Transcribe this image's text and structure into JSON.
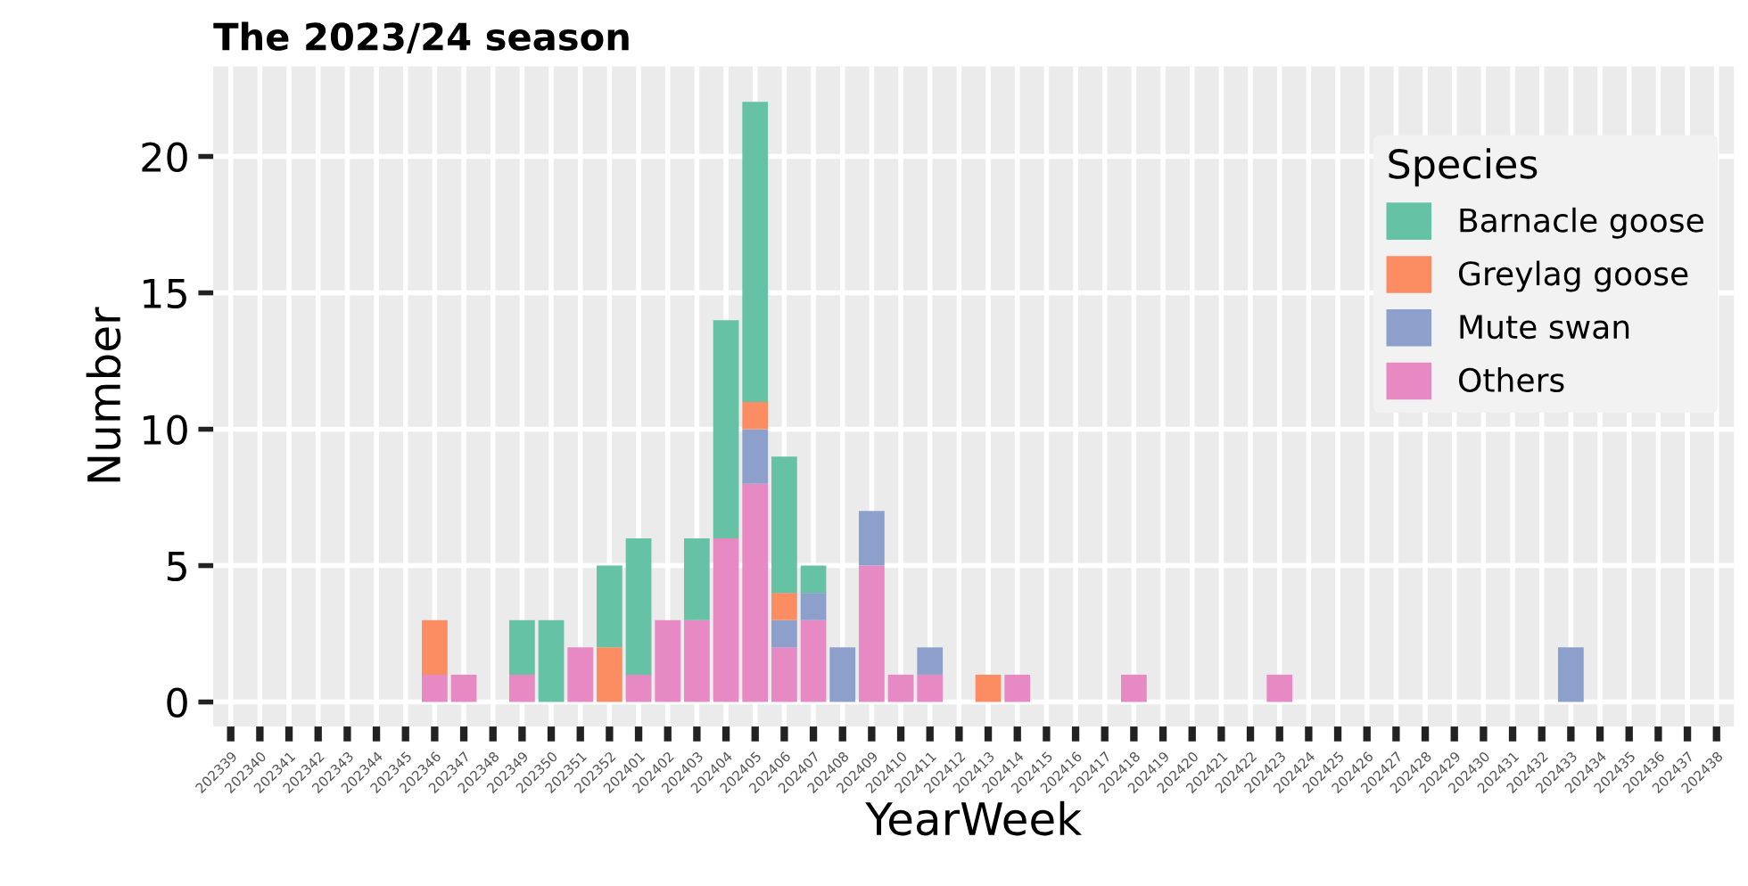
{
  "chart_data": {
    "type": "bar",
    "title": "The 2023/24 season",
    "xlabel": "YearWeek",
    "ylabel": "Number",
    "legend_title": "Species",
    "categories": [
      "202339",
      "202340",
      "202341",
      "202342",
      "202343",
      "202344",
      "202345",
      "202346",
      "202347",
      "202348",
      "202349",
      "202350",
      "202351",
      "202352",
      "202401",
      "202402",
      "202403",
      "202404",
      "202405",
      "202406",
      "202407",
      "202408",
      "202409",
      "202410",
      "202411",
      "202412",
      "202413",
      "202414",
      "202415",
      "202416",
      "202417",
      "202418",
      "202419",
      "202420",
      "202421",
      "202422",
      "202423",
      "202424",
      "202425",
      "202426",
      "202427",
      "202428",
      "202429",
      "202430",
      "202431",
      "202432",
      "202433",
      "202434",
      "202435",
      "202436",
      "202437",
      "202438"
    ],
    "stacked": true,
    "series": [
      {
        "name": "Others",
        "color": "#e78ac3",
        "values": [
          0,
          0,
          0,
          0,
          0,
          0,
          0,
          1,
          1,
          0,
          1,
          0,
          2,
          0,
          1,
          3,
          3,
          6,
          8,
          2,
          3,
          0,
          5,
          1,
          1,
          0,
          0,
          1,
          0,
          0,
          0,
          1,
          0,
          0,
          0,
          0,
          1,
          0,
          0,
          0,
          0,
          0,
          0,
          0,
          0,
          0,
          0,
          0,
          0,
          0,
          0,
          0
        ]
      },
      {
        "name": "Mute swan",
        "color": "#8da0cb",
        "values": [
          0,
          0,
          0,
          0,
          0,
          0,
          0,
          0,
          0,
          0,
          0,
          0,
          0,
          0,
          0,
          0,
          0,
          0,
          2,
          1,
          1,
          2,
          2,
          0,
          1,
          0,
          0,
          0,
          0,
          0,
          0,
          0,
          0,
          0,
          0,
          0,
          0,
          0,
          0,
          0,
          0,
          0,
          0,
          0,
          0,
          0,
          2,
          0,
          0,
          0,
          0,
          0
        ]
      },
      {
        "name": "Greylag goose",
        "color": "#fc8d62",
        "values": [
          0,
          0,
          0,
          0,
          0,
          0,
          0,
          2,
          0,
          0,
          0,
          0,
          0,
          2,
          0,
          0,
          0,
          0,
          1,
          1,
          0,
          0,
          0,
          0,
          0,
          0,
          1,
          0,
          0,
          0,
          0,
          0,
          0,
          0,
          0,
          0,
          0,
          0,
          0,
          0,
          0,
          0,
          0,
          0,
          0,
          0,
          0,
          0,
          0,
          0,
          0,
          0
        ]
      },
      {
        "name": "Barnacle goose",
        "color": "#66c2a5",
        "values": [
          0,
          0,
          0,
          0,
          0,
          0,
          0,
          0,
          0,
          0,
          2,
          3,
          0,
          3,
          5,
          0,
          3,
          8,
          11,
          5,
          1,
          0,
          0,
          0,
          0,
          0,
          0,
          0,
          0,
          0,
          0,
          0,
          0,
          0,
          0,
          0,
          0,
          0,
          0,
          0,
          0,
          0,
          0,
          0,
          0,
          0,
          0,
          0,
          0,
          0,
          0,
          0
        ]
      }
    ],
    "ylim": [
      -0.9,
      23.3
    ],
    "yticks": [
      0,
      5,
      10,
      15,
      20
    ],
    "grid": true,
    "legend": "top right"
  }
}
